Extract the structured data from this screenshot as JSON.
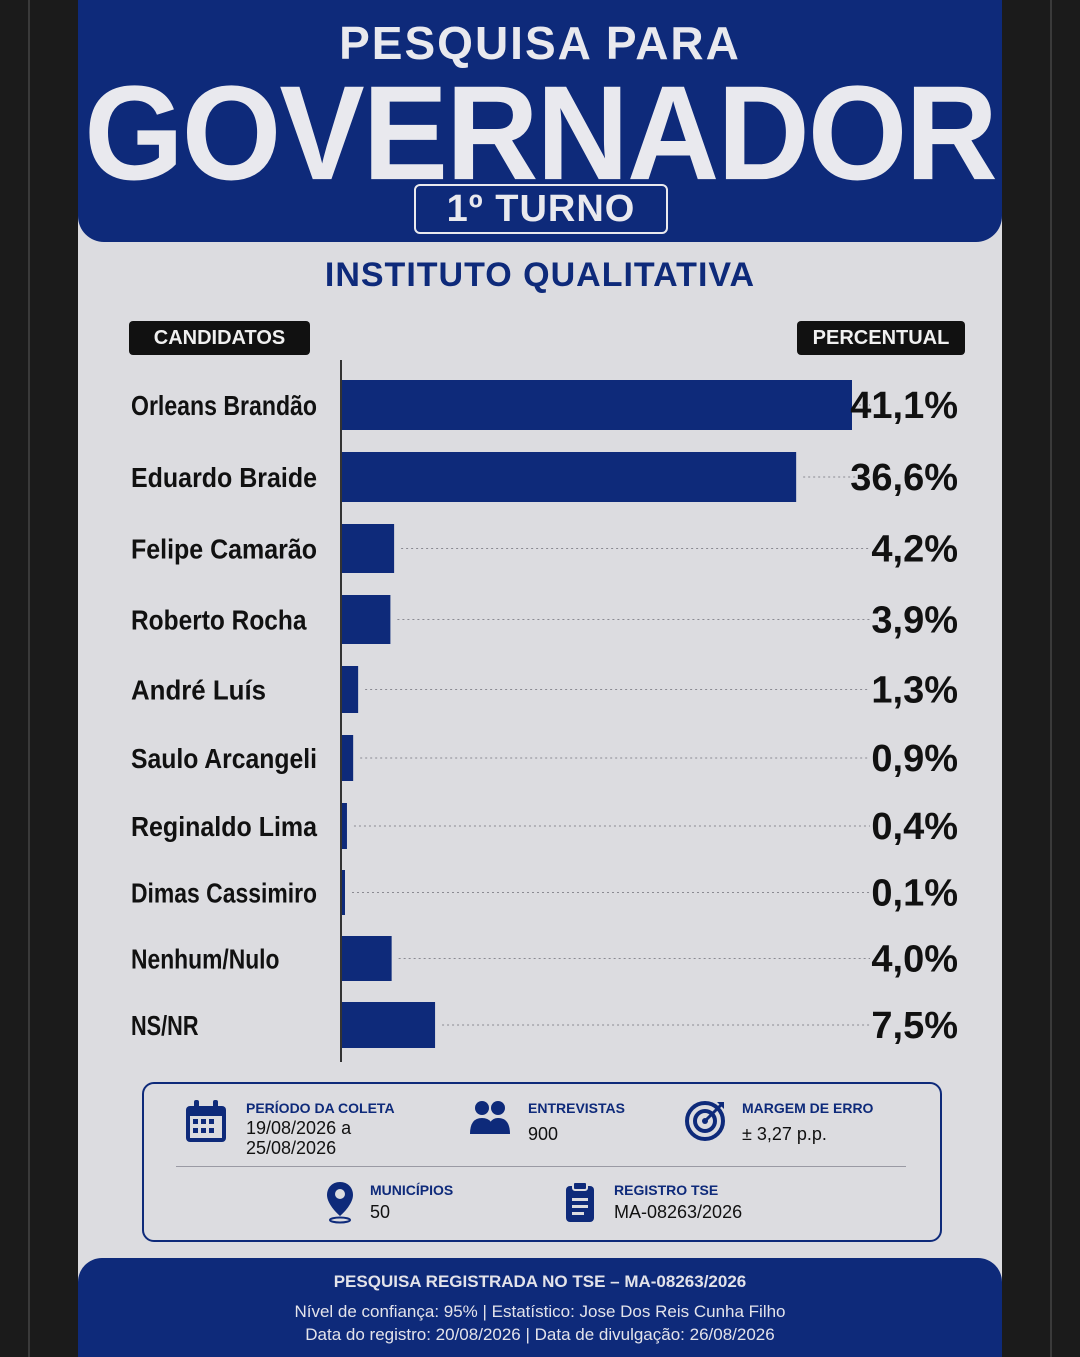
{
  "header": {
    "subtitle": "PESQUISA PARA",
    "title": "GOVERNADOR",
    "round": "1º TURNO"
  },
  "institute": "INSTITUTO QUALITATIVA",
  "columns": {
    "left": "CANDIDATOS",
    "right": "PERCENTUAL"
  },
  "colors": {
    "primary": "#0e2a7a",
    "background": "#dcdce0",
    "pill": "#111111"
  },
  "chart_data": {
    "type": "bar",
    "orientation": "horizontal",
    "categories": [
      "Orleans Brandão",
      "Eduardo Braide",
      "Felipe Camarão",
      "Roberto Rocha",
      "André Luís",
      "Saulo Arcangeli",
      "Reginaldo Lima",
      "Dimas Cassimiro",
      "Nenhum/Nulo",
      "NS/NR"
    ],
    "values": [
      41.1,
      36.6,
      4.2,
      3.9,
      1.3,
      0.9,
      0.4,
      0.1,
      4.0,
      7.5
    ],
    "value_labels": [
      "41,1%",
      "36,6%",
      "4,2%",
      "3,9%",
      "1,3%",
      "0,9%",
      "0,4%",
      "0,1%",
      "4,0%",
      "7,5%"
    ],
    "xlim": [
      0,
      41.1
    ],
    "grid": false,
    "legend": "none"
  },
  "info": {
    "period": {
      "icon": "calendar-icon",
      "title": "PERÍODO DA COLETA",
      "line1": "19/08/2026 a",
      "line2": "25/08/2026"
    },
    "interviews": {
      "icon": "people-icon",
      "title": "ENTREVISTAS",
      "value": "900"
    },
    "margin": {
      "icon": "target-icon",
      "title": "MARGEM DE ERRO",
      "value": "± 3,27 p.p."
    },
    "municipalities": {
      "icon": "location-pin-icon",
      "title": "MUNICÍPIOS",
      "value": "50"
    },
    "registry": {
      "icon": "clipboard-icon",
      "title": "REGISTRO TSE",
      "value": "MA-08263/2026"
    }
  },
  "footer": {
    "line1": "PESQUISA REGISTRADA NO TSE – MA-08263/2026",
    "line2": "Nível de confiança: 95%  |  Estatístico: Jose Dos Reis Cunha Filho",
    "line3": "Data do registro: 20/08/2026  |  Data de divulgação: 26/08/2026"
  }
}
